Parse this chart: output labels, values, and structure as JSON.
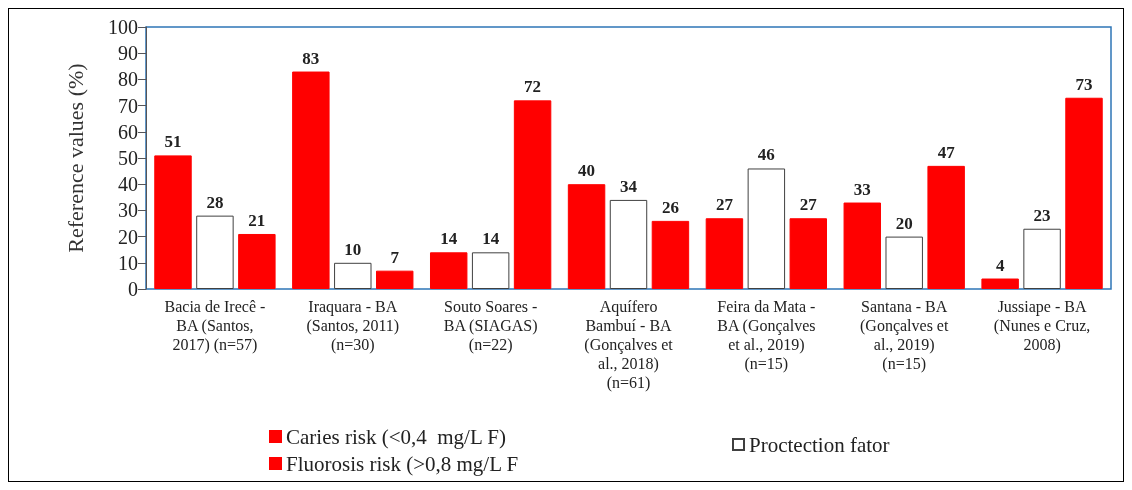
{
  "chart_data": {
    "type": "bar",
    "ylabel": "Reference values (%)",
    "categories": [
      "Bacia de Irecê -\nBA (Santos,\n2017) (n=57)",
      "Iraquara - BA\n(Santos, 2011)\n(n=30)",
      "Souto Soares -\nBA (SIAGAS)\n(n=22)",
      "Aquífero\nBambuí - BA\n(Gonçalves et\nal., 2018)\n(n=61)",
      "Feira da Mata -\nBA (Gonçalves\net al., 2019)\n(n=15)",
      "Santana - BA\n(Gonçalves et\nal., 2019)\n(n=15)",
      "Jussiape - BA\n(Nunes e Cruz,\n2008)"
    ],
    "series": [
      {
        "name": "Caries risk (<0,4  mg/L F)",
        "color": "#ff0000",
        "values": [
          51,
          83,
          14,
          40,
          27,
          33,
          4
        ]
      },
      {
        "name": "Proctection fator",
        "color": "#ffffff",
        "values": [
          28,
          10,
          14,
          34,
          46,
          20,
          23
        ]
      },
      {
        "name": "Fluorosis risk (>0,8 mg/L F",
        "color": "#ff0000",
        "values": [
          21,
          7,
          72,
          26,
          27,
          47,
          73
        ]
      }
    ],
    "ylim": [
      0,
      100
    ],
    "yticks": [
      0,
      10,
      20,
      30,
      40,
      50,
      60,
      70,
      80,
      90,
      100
    ],
    "data_labels": true,
    "legend": "bottom",
    "grid": false
  }
}
